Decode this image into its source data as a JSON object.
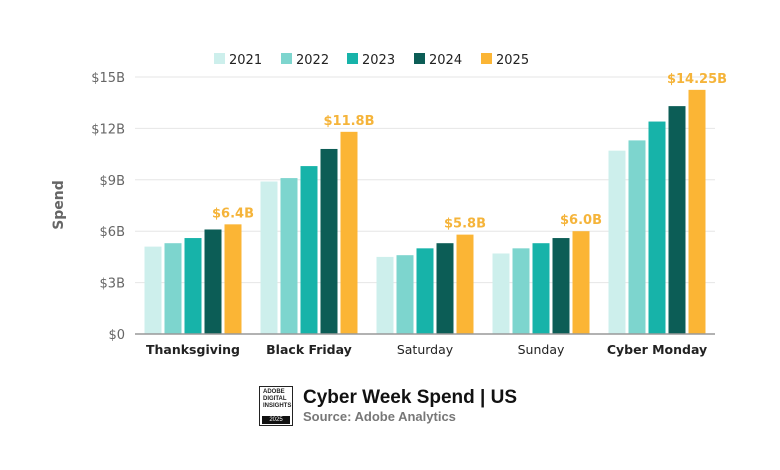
{
  "chart_data": {
    "type": "bar",
    "title": "Cyber Week Spend | US",
    "subtitle": "Source: Adobe Analytics",
    "ylabel": "Spend",
    "xlabel": "",
    "ylim": [
      0,
      15
    ],
    "yticks": [
      0,
      3,
      6,
      9,
      12,
      15
    ],
    "ytick_labels": [
      "$0",
      "$3B",
      "$6B",
      "$9B",
      "$12B",
      "$15B"
    ],
    "grid": true,
    "legend": "top-center",
    "categories": [
      "Thanksgiving",
      "Black Friday",
      "Saturday",
      "Sunday",
      "Cyber Monday"
    ],
    "bold_categories": [
      "Thanksgiving",
      "Black Friday",
      "Cyber Monday"
    ],
    "series": [
      {
        "name": "2021",
        "color": "#cdefec",
        "values": [
          5.1,
          8.9,
          4.5,
          4.7,
          10.7
        ]
      },
      {
        "name": "2022",
        "color": "#7dd5ce",
        "values": [
          5.3,
          9.1,
          4.6,
          5.0,
          11.3
        ]
      },
      {
        "name": "2023",
        "color": "#17b3a9",
        "values": [
          5.6,
          9.8,
          5.0,
          5.3,
          12.4
        ]
      },
      {
        "name": "2024",
        "color": "#0c5d56",
        "values": [
          6.1,
          10.8,
          5.3,
          5.6,
          13.3
        ]
      },
      {
        "name": "2025",
        "color": "#fbb535",
        "values": [
          6.4,
          11.8,
          5.8,
          6.0,
          14.25
        ]
      }
    ],
    "data_labels": [
      "$6.4B",
      "$11.8B",
      "$5.8B",
      "$6.0B",
      "$14.25B"
    ],
    "data_label_color": "#f5b43a"
  },
  "badge": {
    "lines": [
      "ADOBE",
      "DIGITAL",
      "INSIGHTS"
    ],
    "year": "2025"
  }
}
